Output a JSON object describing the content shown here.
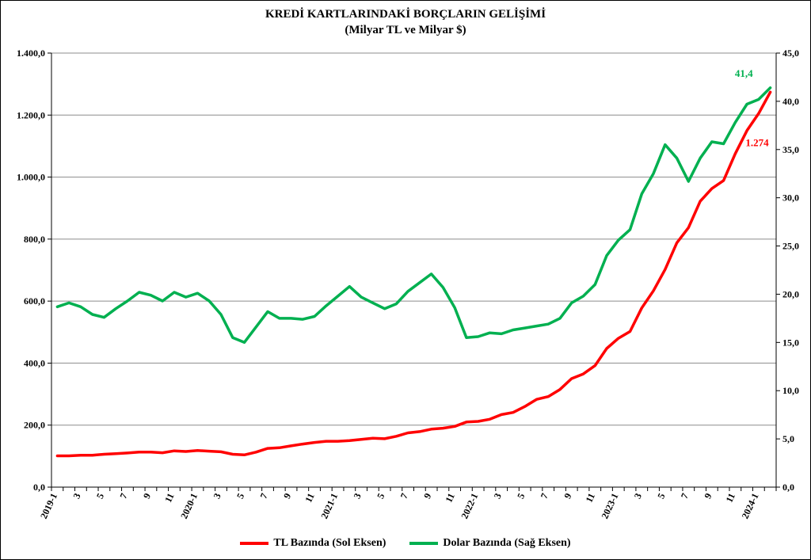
{
  "chart_data": {
    "type": "line",
    "title": "KREDİ KARTLARINDAKİ BORÇLARIN GELİŞİMİ",
    "subtitle": "(Milyar TL ve Milyar $)",
    "x_tick_labels": [
      "2019-1",
      "3",
      "5",
      "7",
      "9",
      "11",
      "2020-1",
      "3",
      "5",
      "7",
      "9",
      "11",
      "2021-1",
      "3",
      "5",
      "7",
      "9",
      "11",
      "2022-1",
      "3",
      "5",
      "7",
      "9",
      "11",
      "2023-1",
      "3",
      "5",
      "7",
      "9",
      "11",
      "2024-1"
    ],
    "left_axis": {
      "min": 0,
      "max": 1400,
      "step": 200,
      "tick_labels": [
        "0,0",
        "200,0",
        "400,0",
        "600,0",
        "800,0",
        "1.000,0",
        "1.200,0",
        "1.400,0"
      ]
    },
    "right_axis": {
      "min": 0,
      "max": 45,
      "step": 5,
      "tick_labels": [
        "0,0",
        "5,0",
        "10,0",
        "15,0",
        "20,0",
        "25,0",
        "30,0",
        "35,0",
        "40,0",
        "45,0"
      ]
    },
    "grid": true,
    "legend_position": "bottom",
    "series": [
      {
        "name": "TL Bazında (Sol Eksen)",
        "axis": "left",
        "color": "#ff0000",
        "values": [
          101,
          101,
          103,
          103,
          106,
          108,
          110,
          113,
          113,
          111,
          117,
          115,
          118,
          116,
          114,
          106,
          104,
          113,
          125,
          127,
          133,
          139,
          144,
          148,
          148,
          150,
          154,
          158,
          156,
          164,
          175,
          179,
          187,
          190,
          196,
          210,
          212,
          219,
          234,
          241,
          260,
          283,
          292,
          315,
          350,
          365,
          392,
          447,
          480,
          502,
          578,
          633,
          702,
          788,
          837,
          922,
          963,
          989,
          1075,
          1150,
          1205,
          1274
        ],
        "data_label": "1.274"
      },
      {
        "name": "Dolar Bazında (Sağ Eksen)",
        "axis": "right",
        "color": "#00b050",
        "values": [
          18.7,
          19.1,
          18.7,
          17.9,
          17.6,
          18.5,
          19.3,
          20.2,
          19.9,
          19.3,
          20.2,
          19.7,
          20.1,
          19.3,
          17.9,
          15.5,
          15.0,
          16.6,
          18.2,
          17.5,
          17.5,
          17.4,
          17.7,
          18.8,
          19.8,
          20.8,
          19.7,
          19.1,
          18.5,
          19.0,
          20.3,
          21.2,
          22.1,
          20.7,
          18.6,
          15.5,
          15.6,
          16.0,
          15.9,
          16.3,
          16.5,
          16.7,
          16.9,
          17.5,
          19.1,
          19.8,
          21.0,
          24.0,
          25.6,
          26.7,
          30.4,
          32.5,
          35.5,
          34.1,
          31.7,
          34.1,
          35.8,
          35.6,
          37.8,
          39.7,
          40.2,
          41.4
        ],
        "data_label": "41,4"
      }
    ]
  }
}
